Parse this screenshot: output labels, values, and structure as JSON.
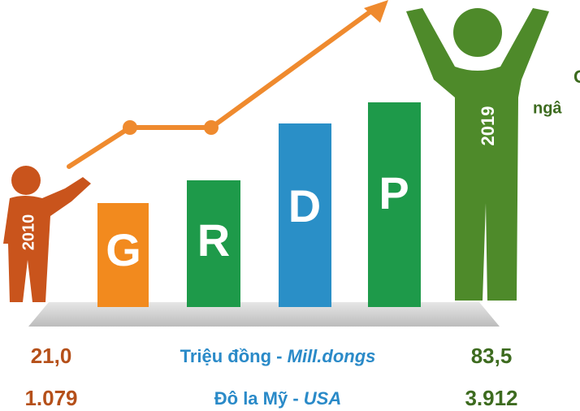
{
  "figures": {
    "start_year": "2010",
    "end_year": "2019"
  },
  "letters": [
    "G",
    "R",
    "D",
    "P"
  ],
  "side_text": [
    "C",
    "ngâ"
  ],
  "rows": [
    {
      "start": "21,0",
      "unit_vi": "Triệu đồng",
      "separator": " - ",
      "unit_en": "Mill.dongs",
      "end": "83,5"
    },
    {
      "start": "1.079",
      "unit_vi": "Đô la Mỹ",
      "separator": " - ",
      "unit_en": "USA",
      "end": "3.912"
    }
  ]
}
